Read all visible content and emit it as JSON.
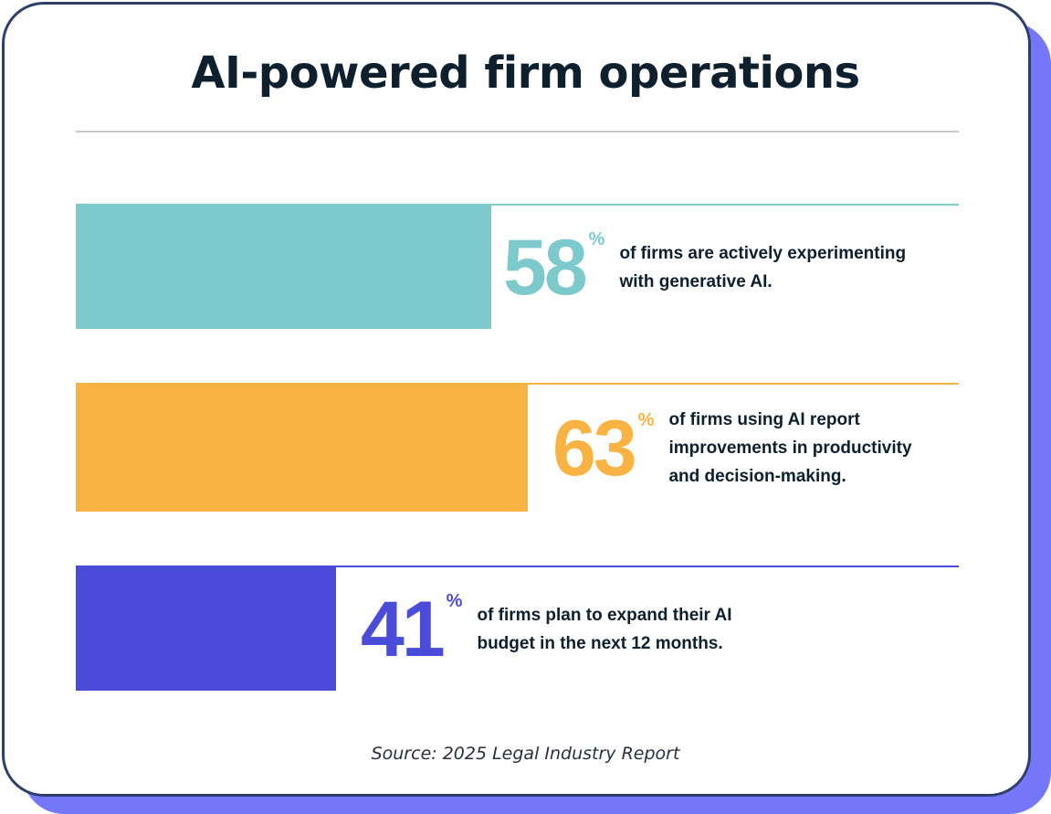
{
  "colors": {
    "frame": "#2d3f6a",
    "shadow": "#7478f8",
    "text": "#0e1f2e"
  },
  "chart_data": {
    "type": "bar",
    "title": "AI-powered firm operations",
    "orientation": "horizontal",
    "unit": "%",
    "series": [
      {
        "value": 58,
        "label": "58",
        "percent": "%",
        "description": "of firms are actively experimenting with generative AI.",
        "color": "#7ccacc"
      },
      {
        "value": 63,
        "label": "63",
        "percent": "%",
        "description": "of firms using AI report improvements in productivity and decision-making.",
        "color": "#f9b342"
      },
      {
        "value": 41,
        "label": "41",
        "percent": "%",
        "description": "of firms plan to expand their AI budget in the next 12 months.",
        "color": "#4a4bd8"
      }
    ],
    "source": "Source:  2025 Legal Industry Report"
  }
}
